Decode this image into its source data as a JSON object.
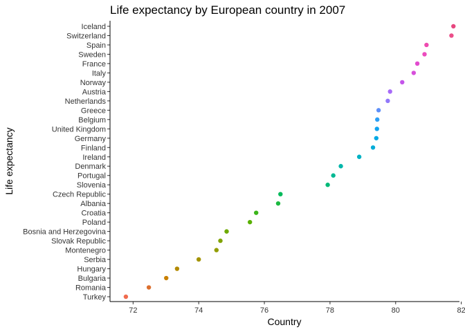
{
  "chart_data": {
    "type": "scatter",
    "title": "Life expectancy by European country in 2007",
    "xlabel": "Country",
    "ylabel": "Life expectancy",
    "xlim": [
      71.4,
      82.2
    ],
    "xticks": [
      72,
      74,
      76,
      78,
      80,
      82
    ],
    "grid": false,
    "legend": "none",
    "points": [
      {
        "country": "Iceland",
        "value": 81.76,
        "color": "#E7477F"
      },
      {
        "country": "Switzerland",
        "value": 81.7,
        "color": "#EB4E89"
      },
      {
        "country": "Spain",
        "value": 80.94,
        "color": "#EE4BB0"
      },
      {
        "country": "Sweden",
        "value": 80.88,
        "color": "#EC4BBE"
      },
      {
        "country": "France",
        "value": 80.66,
        "color": "#E24BCF"
      },
      {
        "country": "Italy",
        "value": 80.55,
        "color": "#D74FDB"
      },
      {
        "country": "Norway",
        "value": 80.2,
        "color": "#C454EA"
      },
      {
        "country": "Austria",
        "value": 79.83,
        "color": "#A76AF8"
      },
      {
        "country": "Netherlands",
        "value": 79.76,
        "color": "#9178FA"
      },
      {
        "country": "Greece",
        "value": 79.48,
        "color": "#5D8FF9"
      },
      {
        "country": "Belgium",
        "value": 79.44,
        "color": "#2C9FF5"
      },
      {
        "country": "United Kingdom",
        "value": 79.43,
        "color": "#12A3EF"
      },
      {
        "country": "Germany",
        "value": 79.41,
        "color": "#00A9E4"
      },
      {
        "country": "Finland",
        "value": 79.31,
        "color": "#00ACD8"
      },
      {
        "country": "Ireland",
        "value": 78.89,
        "color": "#00B2C4"
      },
      {
        "country": "Denmark",
        "value": 78.33,
        "color": "#00B6AA"
      },
      {
        "country": "Portugal",
        "value": 78.1,
        "color": "#00B893"
      },
      {
        "country": "Slovenia",
        "value": 77.93,
        "color": "#00B978"
      },
      {
        "country": "Czech Republic",
        "value": 76.49,
        "color": "#00BA5A"
      },
      {
        "country": "Albania",
        "value": 76.42,
        "color": "#1CB940"
      },
      {
        "country": "Croatia",
        "value": 75.75,
        "color": "#3BB51A"
      },
      {
        "country": "Poland",
        "value": 75.56,
        "color": "#58B000"
      },
      {
        "country": "Bosnia and Herzegovina",
        "value": 74.85,
        "color": "#6DAA00"
      },
      {
        "country": "Slovak Republic",
        "value": 74.66,
        "color": "#80A300"
      },
      {
        "country": "Montenegro",
        "value": 74.54,
        "color": "#929D00"
      },
      {
        "country": "Serbia",
        "value": 74.0,
        "color": "#A39300"
      },
      {
        "country": "Hungary",
        "value": 73.34,
        "color": "#B38A00"
      },
      {
        "country": "Bulgaria",
        "value": 73.01,
        "color": "#C98000"
      },
      {
        "country": "Romania",
        "value": 72.48,
        "color": "#DC6F2E"
      },
      {
        "country": "Turkey",
        "value": 71.78,
        "color": "#F06B4E"
      }
    ]
  }
}
